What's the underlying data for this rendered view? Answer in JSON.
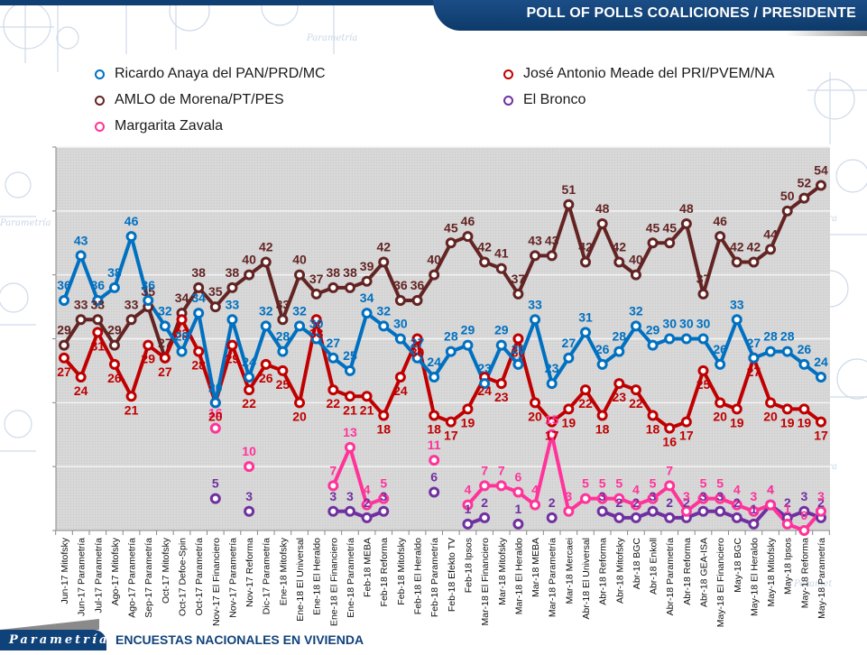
{
  "header": {
    "title": "POLL OF POLLS COALICIONES  / PRESIDENTE"
  },
  "footer": {
    "brand": "Parametría",
    "subtitle": "ENCUESTAS NACIONALES EN VIVIENDA"
  },
  "colors": {
    "anaya": "#0070c0",
    "meade": "#c00000",
    "amlo": "#632423",
    "bronco": "#7030a0",
    "zavala": "#ff3399",
    "brand_blue": "#10427a"
  },
  "chart_data": {
    "type": "line",
    "title": "POLL OF POLLS COALICIONES  / PRESIDENTE",
    "xlabel": "",
    "ylabel": "",
    "ylim": [
      0,
      60
    ],
    "yticks": [
      0,
      10,
      20,
      30,
      40,
      50,
      60
    ],
    "grid": true,
    "legend_position": "top",
    "categories": [
      "Jun-17 Mitofsky",
      "Jun-17 Parametría",
      "Jul-17 Parametría",
      "Ago-17 Mitofsky",
      "Ago-17 Parametría",
      "Sep-17 Parametría",
      "Oct-17 Mitofsky",
      "Oct-17 Defoe-Spin",
      "Oct-17 Parametría",
      "Nov-17 El Financiero",
      "Nov-17 Parametría",
      "Nov-17 Reforma",
      "Dic-17 Parametría",
      "Ene-18 Mitofsky",
      "Ene-18 El Universal",
      "Ene-18 El Heraldo",
      "Ene-18 El Financiero",
      "Ene-18 Parametría",
      "Feb-18 MEBA",
      "Feb-18 Reforma",
      "Feb-18 Mitofsky",
      "Feb-18 El Heraldo",
      "Feb-18 Parametría",
      "Feb-18 Efekto TV",
      "Feb-18 Ipsos",
      "Mar-18 El Financiero",
      "Mar-18 Mitofsky",
      "Mar-18 El Heraldo",
      "Mar-18 MEBA",
      "Mar-18 Parametría",
      "Mar-18 Mercaei",
      "Abr-18 El Universal",
      "Abr-18 Reforma",
      "Abr-18 Mitofsky",
      "Abr-18 BGC",
      "Abr-18 Enkoll",
      "Abr-18 Parametría",
      "Abr-18 Reforma",
      "Abr-18 GEA-ISA",
      "May-18 El Financiero",
      "May-18 BGC",
      "May-18 El Heraldo",
      "May-18 Mitofsky",
      "May-18 Ipsos",
      "May-18 Reforma",
      "May-18 Parametría"
    ],
    "series": [
      {
        "key": "anaya",
        "name": "Ricardo Anaya del PAN/PRD/MC",
        "color": "#0070c0",
        "values": [
          36,
          43,
          36,
          38,
          46,
          36,
          32,
          28,
          34,
          20,
          33,
          24,
          32,
          28,
          32,
          30,
          27,
          25,
          34,
          32,
          30,
          27,
          24,
          28,
          29,
          23,
          29,
          26,
          33,
          23,
          27,
          31,
          26,
          28,
          32,
          29,
          30,
          30,
          30,
          26,
          33,
          27,
          28,
          28,
          26,
          24
        ]
      },
      {
        "key": "meade",
        "name": "José Antonio Meade del PRI/PVEM/NA",
        "color": "#c00000",
        "values": [
          27,
          24,
          31,
          26,
          21,
          29,
          27,
          33,
          28,
          20,
          29,
          22,
          26,
          25,
          20,
          33,
          22,
          21,
          21,
          18,
          24,
          30,
          18,
          17,
          19,
          24,
          23,
          30,
          20,
          17,
          19,
          22,
          18,
          23,
          22,
          18,
          16,
          17,
          25,
          20,
          19,
          27,
          20,
          19,
          19,
          17
        ]
      },
      {
        "key": "amlo",
        "name": "AMLO de Morena/PT/PES",
        "color": "#632423",
        "values": [
          29,
          33,
          33,
          29,
          33,
          35,
          27,
          34,
          38,
          35,
          38,
          40,
          42,
          33,
          40,
          37,
          38,
          38,
          39,
          42,
          36,
          36,
          40,
          45,
          46,
          42,
          41,
          37,
          43,
          43,
          51,
          42,
          48,
          42,
          40,
          45,
          45,
          48,
          37,
          46,
          42,
          42,
          44,
          50,
          52,
          54
        ]
      },
      {
        "key": "bronco",
        "name": "El Bronco",
        "color": "#7030a0",
        "values": [
          null,
          null,
          null,
          null,
          null,
          null,
          null,
          null,
          null,
          5,
          null,
          3,
          null,
          null,
          null,
          null,
          3,
          3,
          2,
          3,
          null,
          null,
          6,
          null,
          1,
          2,
          null,
          1,
          null,
          2,
          null,
          null,
          3,
          2,
          2,
          3,
          2,
          2,
          3,
          3,
          2,
          1,
          4,
          2,
          3,
          2
        ]
      },
      {
        "key": "zavala",
        "name": "Margarita Zavala",
        "color": "#ff3399",
        "values": [
          null,
          null,
          null,
          null,
          null,
          null,
          null,
          null,
          null,
          16,
          null,
          10,
          null,
          null,
          null,
          null,
          7,
          13,
          4,
          5,
          null,
          null,
          11,
          null,
          4,
          7,
          7,
          6,
          4,
          15,
          3,
          5,
          5,
          5,
          4,
          5,
          7,
          3,
          5,
          5,
          4,
          3,
          4,
          1,
          0,
          3
        ]
      }
    ]
  }
}
